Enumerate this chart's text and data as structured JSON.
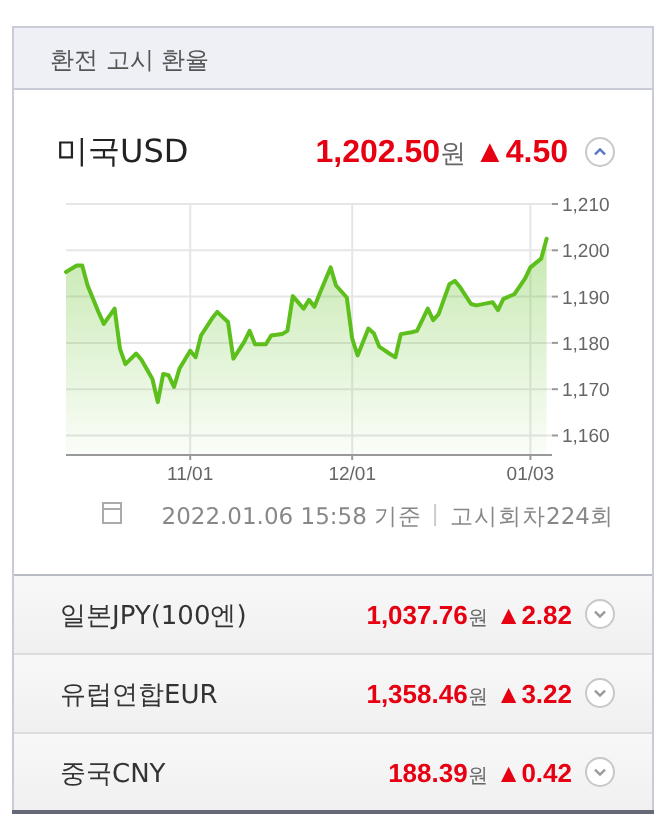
{
  "chart_data": [
    {
      "type": "area",
      "title": "미국USD",
      "subtitle": "1,202.50원",
      "annotations": [
        "환전 고시 환율",
        "▲4.50",
        "2022.01.06 15:58 기준",
        "고시회차224회"
      ],
      "x": [
        "2021-10-09",
        "2021-10-11",
        "2021-10-12",
        "2021-10-13",
        "2021-10-15",
        "2021-10-16",
        "2021-10-18",
        "2021-10-19",
        "2021-10-20",
        "2021-10-22",
        "2021-10-23",
        "2021-10-25",
        "2021-10-26",
        "2021-10-27",
        "2021-10-28",
        "2021-10-29",
        "2021-10-30",
        "2021-11-01",
        "2021-11-02",
        "2021-11-03",
        "2021-11-05",
        "2021-11-06",
        "2021-11-08",
        "2021-11-09",
        "2021-11-11",
        "2021-11-12",
        "2021-11-13",
        "2021-11-15",
        "2021-11-16",
        "2021-11-18",
        "2021-11-19",
        "2021-11-20",
        "2021-11-22",
        "2021-11-23",
        "2021-11-24",
        "2021-11-25",
        "2021-11-27",
        "2021-11-28",
        "2021-11-30",
        "2021-12-01",
        "2021-12-02",
        "2021-12-04",
        "2021-12-05",
        "2021-12-06",
        "2021-12-08",
        "2021-12-09",
        "2021-12-10",
        "2021-12-12",
        "2021-12-13",
        "2021-12-15",
        "2021-12-16",
        "2021-12-17",
        "2021-12-19",
        "2021-12-20",
        "2021-12-21",
        "2021-12-23",
        "2021-12-24",
        "2021-12-27",
        "2021-12-28",
        "2021-12-29",
        "2021-12-31",
        "2022-01-02",
        "2022-01-03",
        "2022-01-05",
        "2022-01-06"
      ],
      "series": [
        {
          "color": "#5cbf1c",
          "values": [
            1195.3,
            1196.7,
            1196.7,
            1192.4,
            1186.7,
            1184.1,
            1187.4,
            1178.7,
            1175.4,
            1177.7,
            1176.3,
            1172.2,
            1167.2,
            1173.3,
            1173,
            1170.5,
            1174.4,
            1178.3,
            1176.9,
            1181.6,
            1185.2,
            1186.7,
            1184.5,
            1176.6,
            1180.2,
            1182.6,
            1179.7,
            1179.7,
            1181.6,
            1181.9,
            1182.6,
            1190.1,
            1187.4,
            1189.3,
            1187.8,
            1190.7,
            1196.3,
            1192.4,
            1189.8,
            1180.9,
            1177.3,
            1183.1,
            1182.1,
            1179.2,
            1177.6,
            1176.9,
            1181.9,
            1182.3,
            1182.6,
            1187.4,
            1184.9,
            1186.2,
            1192.7,
            1193.4,
            1192,
            1188.4,
            1188.1,
            1188.8,
            1187.1,
            1189.5,
            1190.5,
            1193.9,
            1196.3,
            1198.2,
            1202.5
          ]
        }
      ],
      "xlim": [
        "2021-10-09",
        "2022-01-07"
      ],
      "xticks": [
        {
          "value": "2021-11-01",
          "label": "11/01"
        },
        {
          "value": "2021-12-01",
          "label": "12/01"
        },
        {
          "value": "2022-01-03",
          "label": "01/03"
        }
      ],
      "ylim": [
        1156,
        1210
      ],
      "yticks": [
        {
          "value": 1160,
          "label": "1,160"
        },
        {
          "value": 1170,
          "label": "1,170"
        },
        {
          "value": 1180,
          "label": "1,180"
        },
        {
          "value": 1190,
          "label": "1,190"
        },
        {
          "value": 1200,
          "label": "1,200"
        },
        {
          "value": 1210,
          "label": "1,210"
        }
      ],
      "grid": true
    },
    {
      "type": "other",
      "annotations": [
        "일본JPY(100엔)",
        "1,037.76원",
        "▲2.82",
        "유럽연합EUR",
        "1,358.46원",
        "▲3.22",
        "중국CNY",
        "188.39원",
        "▲0.42"
      ]
    }
  ]
}
